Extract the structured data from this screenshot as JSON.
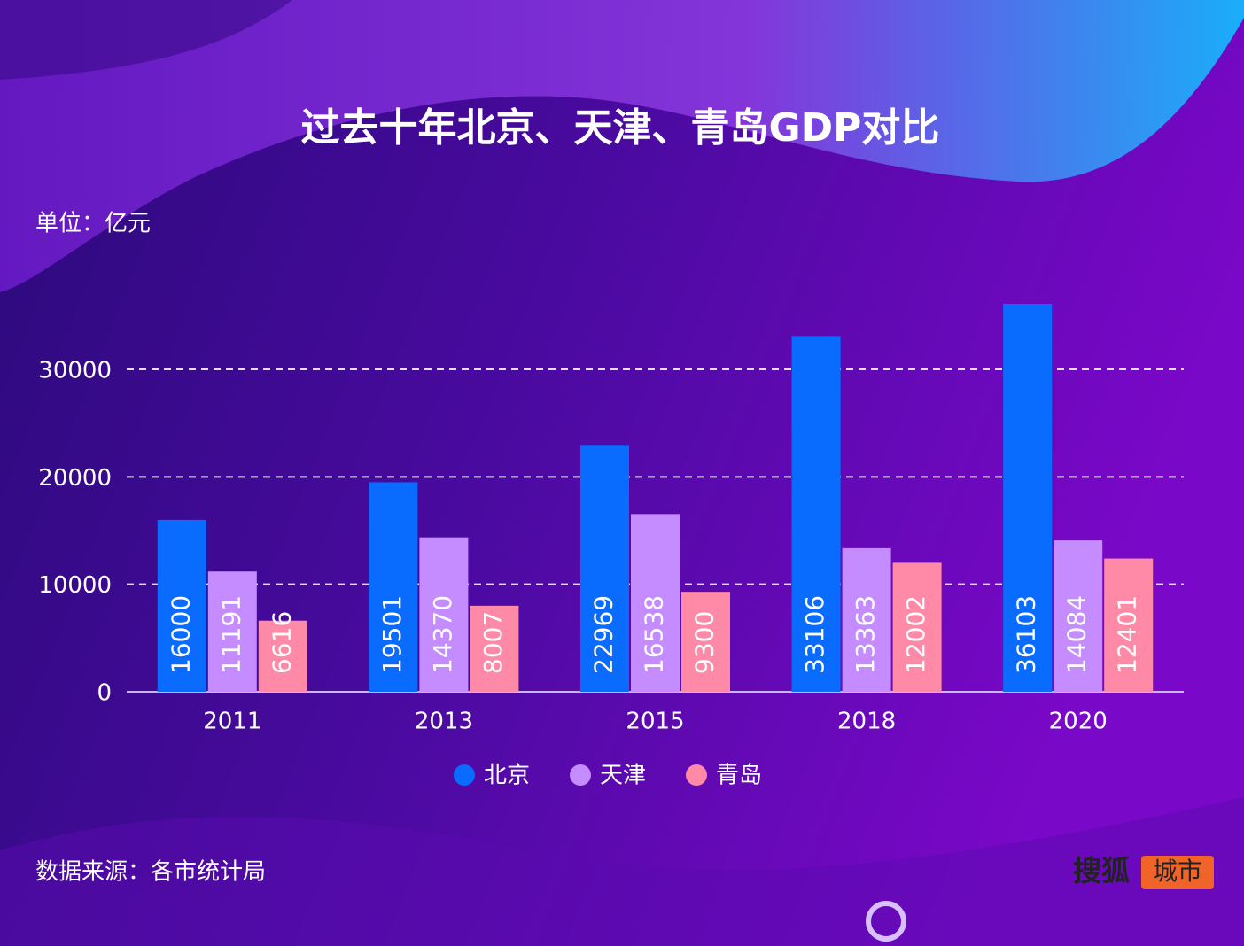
{
  "chart_data": {
    "type": "bar",
    "title": "过去十年北京、天津、青岛GDP对比",
    "unit_label": "单位：亿元",
    "source": "数据来源：各市统计局",
    "brand": "搜狐",
    "brand_tag": "城市",
    "categories": [
      "2011",
      "2013",
      "2015",
      "2018",
      "2020"
    ],
    "series": [
      {
        "name": "北京",
        "color": "#0a6cff",
        "values": [
          16000,
          19501,
          22969,
          33106,
          36103
        ]
      },
      {
        "name": "天津",
        "color": "#c58cff",
        "values": [
          11191,
          14370,
          16538,
          13363,
          14084
        ]
      },
      {
        "name": "青岛",
        "color": "#ff8aa8",
        "values": [
          6616,
          8007,
          9300,
          12002,
          12401
        ]
      }
    ],
    "ylim": [
      0,
      36103
    ],
    "yticks": [
      0,
      10000,
      20000,
      30000
    ],
    "grid": true,
    "legend": "bottom"
  }
}
